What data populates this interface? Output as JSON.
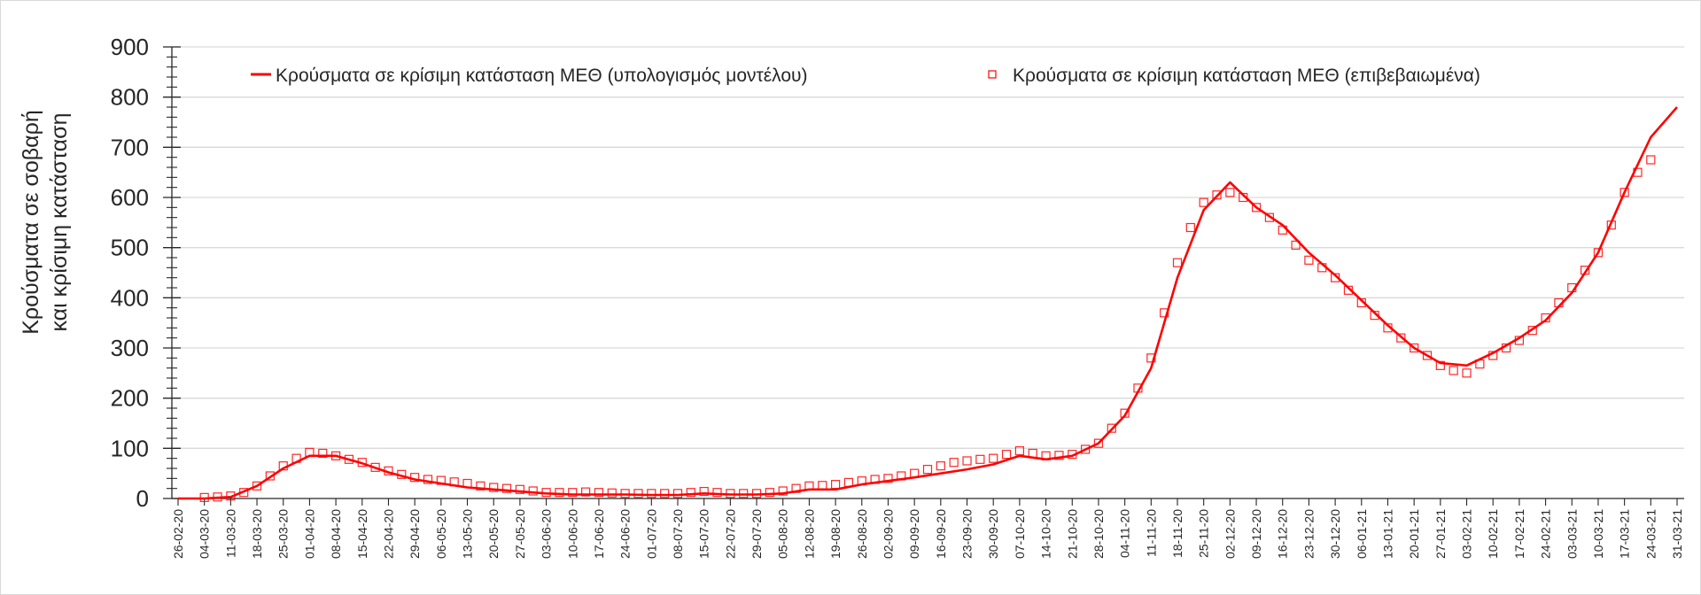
{
  "chart_data": {
    "type": "line",
    "ylabel_lines": [
      "Κρούσματα σε σοβαρή",
      "και κρίσιμη κατάσταση"
    ],
    "xlabel": "",
    "ylim": [
      0,
      900
    ],
    "yticks": [
      0,
      100,
      200,
      300,
      400,
      500,
      600,
      700,
      800,
      900
    ],
    "grid": "horizontal",
    "legend_placement": "top",
    "x_tick_labels": [
      "26-02-20",
      "04-03-20",
      "11-03-20",
      "18-03-20",
      "25-03-20",
      "01-04-20",
      "08-04-20",
      "15-04-20",
      "22-04-20",
      "29-04-20",
      "06-05-20",
      "13-05-20",
      "20-05-20",
      "27-05-20",
      "03-06-20",
      "10-06-20",
      "17-06-20",
      "24-06-20",
      "01-07-20",
      "08-07-20",
      "15-07-20",
      "22-07-20",
      "29-07-20",
      "05-08-20",
      "12-08-20",
      "19-08-20",
      "26-08-20",
      "02-09-20",
      "09-09-20",
      "16-09-20",
      "23-09-20",
      "30-09-20",
      "07-10-20",
      "14-10-20",
      "21-10-20",
      "28-10-20",
      "04-11-20",
      "11-11-20",
      "18-11-20",
      "25-11-20",
      "02-12-20",
      "09-12-20",
      "16-12-20",
      "23-12-20",
      "30-12-20",
      "06-01-21",
      "13-01-21",
      "20-01-21",
      "27-01-21",
      "03-02-21",
      "10-02-21",
      "17-02-21",
      "24-02-21",
      "03-03-21",
      "10-03-21",
      "17-03-21",
      "24-03-21",
      "31-03-21"
    ],
    "x_tick_interval_days": 7,
    "series": [
      {
        "name": "Κρούσματα σε κρίσιμη κατάσταση ΜΕΘ (υπολογισμός μοντέλου)",
        "style": "line",
        "color": "#ff0000",
        "start": "26-02-20",
        "interval_days": 7,
        "values": [
          0,
          0,
          3,
          25,
          60,
          85,
          85,
          70,
          52,
          38,
          30,
          22,
          18,
          14,
          10,
          8,
          8,
          8,
          7,
          7,
          10,
          8,
          8,
          10,
          18,
          18,
          28,
          35,
          42,
          50,
          58,
          68,
          85,
          78,
          85,
          110,
          165,
          260,
          440,
          575,
          630,
          580,
          545,
          490,
          445,
          395,
          345,
          300,
          270,
          265,
          290,
          320,
          355,
          410,
          490,
          610,
          720,
          780
        ]
      },
      {
        "name": "Κρούσματα σε κρίσιμη κατάσταση ΜΕΘ (επιβεβαιωμένα)",
        "style": "square-markers",
        "color": "#ff0000",
        "start": "04-03-20",
        "interval_days": 3.5,
        "values": [
          2,
          3,
          5,
          12,
          25,
          45,
          65,
          80,
          92,
          90,
          85,
          78,
          72,
          62,
          55,
          48,
          42,
          38,
          36,
          33,
          30,
          25,
          22,
          20,
          18,
          15,
          12,
          12,
          12,
          13,
          12,
          11,
          10,
          10,
          10,
          10,
          10,
          12,
          14,
          12,
          10,
          10,
          10,
          12,
          15,
          20,
          25,
          26,
          28,
          32,
          35,
          38,
          40,
          45,
          50,
          58,
          65,
          72,
          75,
          78,
          80,
          88,
          95,
          90,
          85,
          86,
          88,
          98,
          110,
          140,
          170,
          220,
          280,
          370,
          470,
          540,
          590,
          605,
          610,
          600,
          580,
          560,
          535,
          505,
          475,
          460,
          440,
          415,
          390,
          365,
          340,
          320,
          300,
          285,
          265,
          255,
          250,
          268,
          285,
          300,
          315,
          335,
          360,
          390,
          420,
          455,
          490,
          545,
          610,
          650,
          675
        ]
      }
    ]
  }
}
